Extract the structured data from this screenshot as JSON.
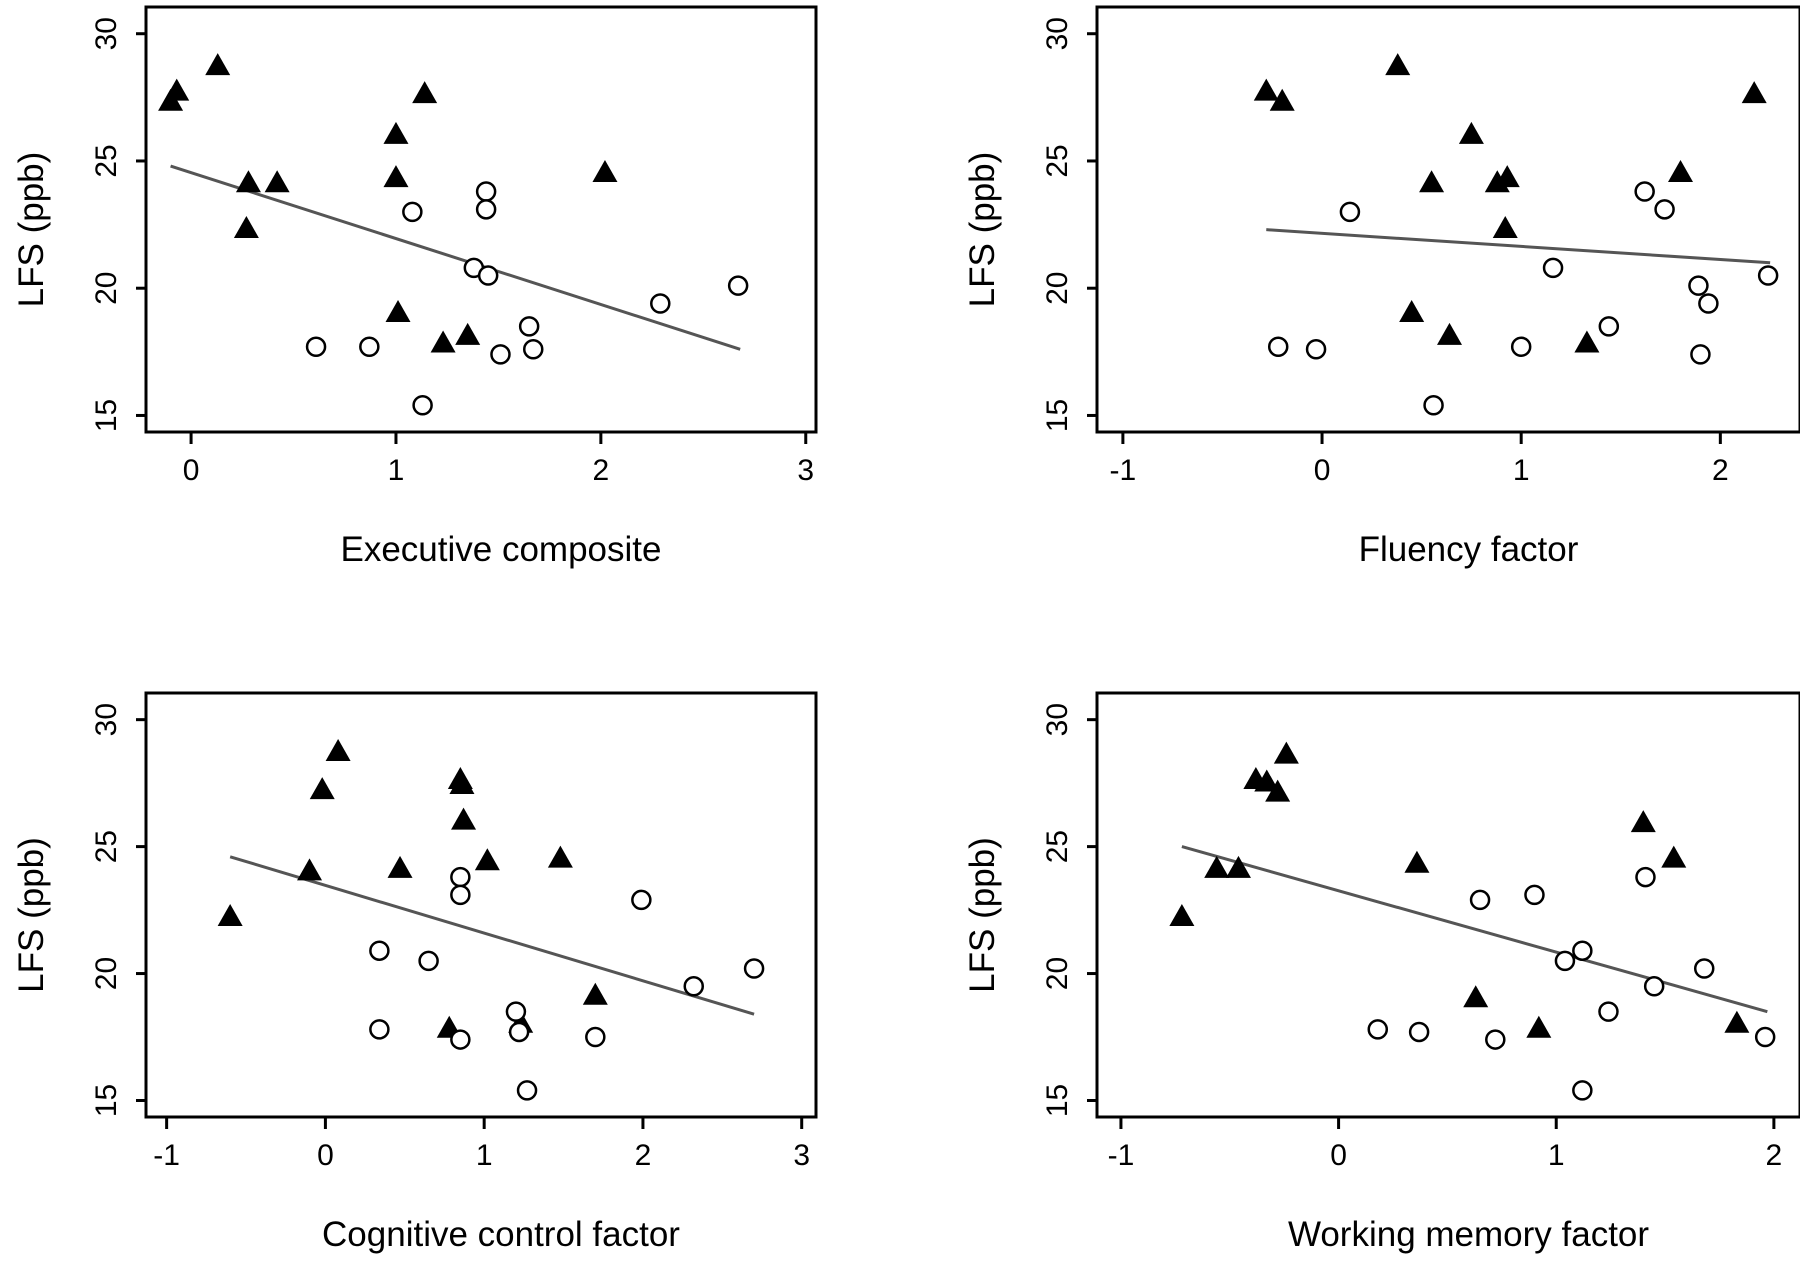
{
  "chart_data": [
    {
      "type": "scatter",
      "xlabel": "Executive composite",
      "ylabel": "LFS (ppb)",
      "xticks": [
        0,
        1,
        2,
        3
      ],
      "yticks": [
        15,
        20,
        25,
        30
      ],
      "xlim": [
        -0.22,
        3.05
      ],
      "ylim": [
        14.35,
        31.05
      ],
      "fit_line": {
        "x": [
          -0.1,
          2.68
        ],
        "y": [
          24.8,
          17.6
        ]
      },
      "series": [
        {
          "marker": "triangle",
          "points": [
            [
              -0.1,
              27.3
            ],
            [
              -0.07,
              27.7
            ],
            [
              0.13,
              28.7
            ],
            [
              0.28,
              24.1
            ],
            [
              0.27,
              22.3
            ],
            [
              0.42,
              24.1
            ],
            [
              1.0,
              26.0
            ],
            [
              1.0,
              24.3
            ],
            [
              1.14,
              27.6
            ],
            [
              1.01,
              19.0
            ],
            [
              1.23,
              17.8
            ],
            [
              1.35,
              18.1
            ],
            [
              2.02,
              24.5
            ]
          ]
        },
        {
          "marker": "circle",
          "points": [
            [
              0.61,
              17.7
            ],
            [
              0.87,
              17.7
            ],
            [
              1.08,
              23.0
            ],
            [
              1.13,
              15.4
            ],
            [
              1.38,
              20.8
            ],
            [
              1.44,
              23.8
            ],
            [
              1.44,
              23.1
            ],
            [
              1.45,
              20.5
            ],
            [
              1.51,
              17.4
            ],
            [
              1.65,
              18.5
            ],
            [
              1.67,
              17.6
            ],
            [
              2.29,
              19.4
            ],
            [
              2.67,
              20.1
            ]
          ]
        }
      ]
    },
    {
      "type": "scatter",
      "xlabel": "Fluency factor",
      "ylabel": "LFS (ppb)",
      "xticks": [
        -1,
        0,
        1,
        2
      ],
      "yticks": [
        15,
        20,
        25,
        30
      ],
      "xlim": [
        -1.13,
        2.4
      ],
      "ylim": [
        14.35,
        31.05
      ],
      "fit_line": {
        "x": [
          -0.28,
          2.25
        ],
        "y": [
          22.3,
          21.0
        ]
      },
      "series": [
        {
          "marker": "triangle",
          "points": [
            [
              -0.28,
              27.7
            ],
            [
              -0.2,
              27.3
            ],
            [
              0.38,
              28.7
            ],
            [
              0.55,
              24.1
            ],
            [
              0.75,
              26.0
            ],
            [
              0.88,
              24.1
            ],
            [
              0.93,
              24.3
            ],
            [
              0.92,
              22.3
            ],
            [
              0.45,
              19.0
            ],
            [
              0.64,
              18.1
            ],
            [
              1.33,
              17.8
            ],
            [
              1.8,
              24.5
            ],
            [
              2.17,
              27.6
            ]
          ]
        },
        {
          "marker": "circle",
          "points": [
            [
              -0.22,
              17.7
            ],
            [
              -0.03,
              17.6
            ],
            [
              0.14,
              23.0
            ],
            [
              0.56,
              15.4
            ],
            [
              1.0,
              17.7
            ],
            [
              1.16,
              20.8
            ],
            [
              1.44,
              18.5
            ],
            [
              1.62,
              23.8
            ],
            [
              1.72,
              23.1
            ],
            [
              1.89,
              20.1
            ],
            [
              1.94,
              19.4
            ],
            [
              1.9,
              17.4
            ],
            [
              2.24,
              20.5
            ]
          ]
        }
      ]
    },
    {
      "type": "scatter",
      "xlabel": "Cognitive control factor",
      "ylabel": "LFS (ppb)",
      "xticks": [
        -1,
        0,
        1,
        2,
        3
      ],
      "yticks": [
        15,
        20,
        25,
        30
      ],
      "xlim": [
        -1.13,
        3.09
      ],
      "ylim": [
        14.35,
        31.05
      ],
      "fit_line": {
        "x": [
          -0.6,
          2.7
        ],
        "y": [
          24.6,
          18.4
        ]
      },
      "series": [
        {
          "marker": "triangle",
          "points": [
            [
              -0.6,
              22.2
            ],
            [
              -0.1,
              24.0
            ],
            [
              -0.02,
              27.2
            ],
            [
              0.08,
              28.7
            ],
            [
              0.47,
              24.1
            ],
            [
              0.78,
              17.8
            ],
            [
              0.85,
              27.6
            ],
            [
              0.86,
              27.4
            ],
            [
              0.87,
              26.0
            ],
            [
              1.02,
              24.4
            ],
            [
              1.23,
              18.0
            ],
            [
              1.48,
              24.5
            ],
            [
              1.7,
              19.1
            ]
          ]
        },
        {
          "marker": "circle",
          "points": [
            [
              0.34,
              20.9
            ],
            [
              0.34,
              17.8
            ],
            [
              0.65,
              20.5
            ],
            [
              0.85,
              23.8
            ],
            [
              0.85,
              23.1
            ],
            [
              0.85,
              17.4
            ],
            [
              1.2,
              18.5
            ],
            [
              1.22,
              17.7
            ],
            [
              1.27,
              15.4
            ],
            [
              1.7,
              17.5
            ],
            [
              1.99,
              22.9
            ],
            [
              2.32,
              19.5
            ],
            [
              2.7,
              20.2
            ]
          ]
        }
      ]
    },
    {
      "type": "scatter",
      "xlabel": "Working memory factor",
      "ylabel": "LFS (ppb)",
      "xticks": [
        -1,
        0,
        1,
        2
      ],
      "yticks": [
        15,
        20,
        25,
        30
      ],
      "xlim": [
        -1.11,
        2.12
      ],
      "ylim": [
        14.35,
        31.05
      ],
      "fit_line": {
        "x": [
          -0.72,
          1.97
        ],
        "y": [
          25.0,
          18.5
        ]
      },
      "series": [
        {
          "marker": "triangle",
          "points": [
            [
              -0.72,
              22.2
            ],
            [
              -0.56,
              24.1
            ],
            [
              -0.46,
              24.1
            ],
            [
              -0.38,
              27.6
            ],
            [
              -0.33,
              27.5
            ],
            [
              -0.28,
              27.1
            ],
            [
              -0.24,
              28.6
            ],
            [
              0.36,
              24.3
            ],
            [
              0.63,
              19.0
            ],
            [
              0.92,
              17.8
            ],
            [
              1.4,
              25.9
            ],
            [
              1.54,
              24.5
            ],
            [
              1.83,
              18.0
            ]
          ]
        },
        {
          "marker": "circle",
          "points": [
            [
              0.18,
              17.8
            ],
            [
              0.37,
              17.7
            ],
            [
              0.65,
              22.9
            ],
            [
              0.72,
              17.4
            ],
            [
              0.9,
              23.1
            ],
            [
              1.04,
              20.5
            ],
            [
              1.12,
              20.9
            ],
            [
              1.12,
              15.4
            ],
            [
              1.24,
              18.5
            ],
            [
              1.41,
              23.8
            ],
            [
              1.45,
              19.5
            ],
            [
              1.68,
              20.2
            ],
            [
              1.96,
              17.5
            ]
          ]
        }
      ]
    }
  ]
}
